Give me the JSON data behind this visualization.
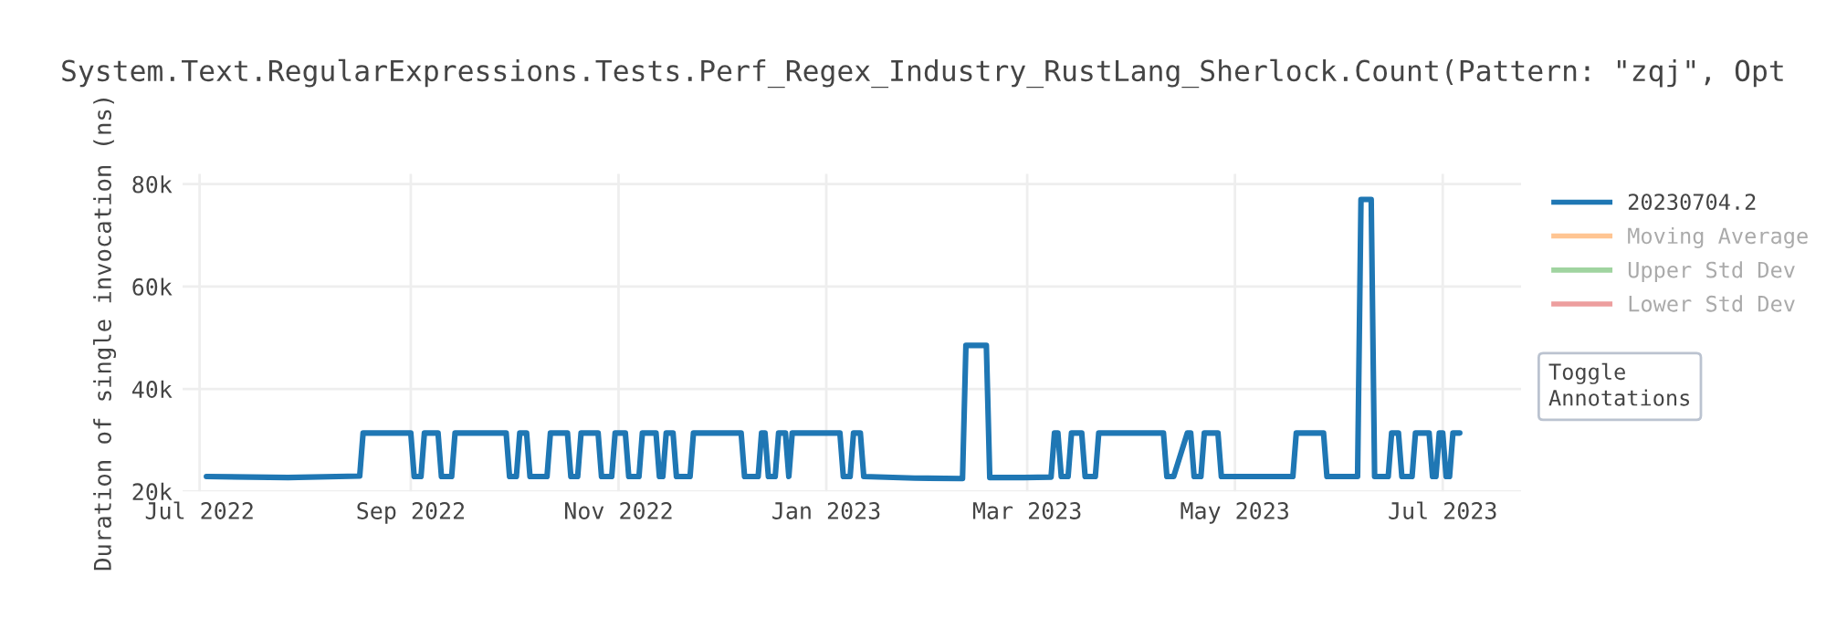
{
  "chart_data": {
    "type": "line",
    "title": "System.Text.RegularExpressions.Tests.Perf_Regex_Industry_RustLang_Sherlock.Count(Pattern: \"zqj\", Opt",
    "ylabel": "Duration of single invocation (ns)",
    "x": [
      "2022-07-03",
      "2022-07-27",
      "2022-08-17",
      "2022-08-18",
      "2022-09-01",
      "2022-09-02",
      "2022-09-04",
      "2022-09-05",
      "2022-09-09",
      "2022-09-10",
      "2022-09-13",
      "2022-09-14",
      "2022-09-29",
      "2022-09-30",
      "2022-10-02",
      "2022-10-03",
      "2022-10-05",
      "2022-10-06",
      "2022-10-11",
      "2022-10-12",
      "2022-10-17",
      "2022-10-18",
      "2022-10-20",
      "2022-10-21",
      "2022-10-26",
      "2022-10-27",
      "2022-10-30",
      "2022-10-31",
      "2022-11-03",
      "2022-11-04",
      "2022-11-07",
      "2022-11-08",
      "2022-11-12",
      "2022-11-13",
      "2022-11-14",
      "2022-11-15",
      "2022-11-17",
      "2022-11-18",
      "2022-11-22",
      "2022-11-23",
      "2022-12-07",
      "2022-12-08",
      "2022-12-12",
      "2022-12-13",
      "2022-12-14",
      "2022-12-15",
      "2022-12-17",
      "2022-12-18",
      "2022-12-20",
      "2022-12-21",
      "2022-12-22",
      "2023-01-05",
      "2023-01-06",
      "2023-01-08",
      "2023-01-09",
      "2023-01-11",
      "2023-01-12",
      "2023-01-27",
      "2023-02-10",
      "2023-02-11",
      "2023-02-17",
      "2023-02-18",
      "2023-02-28",
      "2023-03-08",
      "2023-03-09",
      "2023-03-10",
      "2023-03-11",
      "2023-03-13",
      "2023-03-14",
      "2023-03-17",
      "2023-03-18",
      "2023-03-21",
      "2023-03-22",
      "2023-04-10",
      "2023-04-11",
      "2023-04-13",
      "2023-04-17",
      "2023-04-18",
      "2023-04-19",
      "2023-04-21",
      "2023-04-22",
      "2023-04-26",
      "2023-04-27",
      "2023-05-18",
      "2023-05-19",
      "2023-05-27",
      "2023-05-28",
      "2023-06-06",
      "2023-06-07",
      "2023-06-10",
      "2023-06-11",
      "2023-06-15",
      "2023-06-16",
      "2023-06-18",
      "2023-06-19",
      "2023-06-22",
      "2023-06-23",
      "2023-06-27",
      "2023-06-28",
      "2023-06-29",
      "2023-06-30",
      "2023-07-01",
      "2023-07-02",
      "2023-07-03",
      "2023-07-04",
      "2023-07-06"
    ],
    "series": [
      {
        "name": "20230704.2",
        "color": "#1f77b4",
        "values": [
          22900,
          22700,
          23000,
          31400,
          31400,
          22900,
          22900,
          31400,
          31400,
          22900,
          22900,
          31400,
          31400,
          22900,
          22900,
          31400,
          31400,
          22900,
          22900,
          31400,
          31400,
          22900,
          22900,
          31400,
          31400,
          22900,
          22900,
          31400,
          31400,
          22900,
          22900,
          31400,
          31400,
          22900,
          22900,
          31400,
          31400,
          22900,
          22900,
          31400,
          31400,
          22900,
          22900,
          31400,
          31400,
          22900,
          22900,
          31400,
          31400,
          22900,
          31400,
          31400,
          22900,
          22900,
          31400,
          31400,
          22900,
          22600,
          22500,
          48500,
          48500,
          22700,
          22700,
          22800,
          31400,
          31400,
          22900,
          22900,
          31400,
          31400,
          22900,
          22900,
          31400,
          31400,
          22900,
          22900,
          31400,
          31400,
          22900,
          22900,
          31400,
          31400,
          22900,
          22900,
          31400,
          31400,
          22900,
          22900,
          77000,
          77000,
          22900,
          22900,
          31400,
          31400,
          22900,
          22900,
          31400,
          31400,
          22900,
          22900,
          31400,
          31400,
          22900,
          22900,
          31400,
          31400
        ]
      },
      {
        "name": "Moving Average",
        "color": "#ff7f0e",
        "values": [
          null,
          null,
          null,
          null,
          null,
          null,
          null,
          null,
          null,
          null,
          null,
          null,
          null,
          null,
          null,
          null,
          null,
          null,
          null,
          null,
          null,
          null,
          null,
          null,
          null,
          null,
          null,
          null,
          null,
          null,
          null,
          null,
          null,
          null,
          null,
          null,
          null,
          null,
          null,
          null,
          null,
          null,
          null,
          null,
          null,
          null,
          null,
          null,
          null,
          null,
          null,
          null,
          null,
          null,
          null,
          null,
          null,
          null,
          null,
          null,
          null,
          null,
          null,
          null,
          null,
          null,
          null,
          null,
          null,
          null,
          null,
          null,
          null,
          null,
          null,
          null,
          null,
          null,
          null,
          null,
          null,
          null,
          null,
          null,
          null,
          null,
          null,
          null,
          null,
          null,
          null,
          null,
          null,
          null,
          null,
          null,
          null,
          null,
          null,
          null,
          null,
          null,
          null,
          null,
          null,
          null
        ]
      },
      {
        "name": "Upper Std Dev",
        "color": "#2ca02c",
        "values": [
          null,
          null,
          null,
          null,
          null,
          null,
          null,
          null,
          null,
          null,
          null,
          null,
          null,
          null,
          null,
          null,
          null,
          null,
          null,
          null,
          null,
          null,
          null,
          null,
          null,
          null,
          null,
          null,
          null,
          null,
          null,
          null,
          null,
          null,
          null,
          null,
          null,
          null,
          null,
          null,
          null,
          null,
          null,
          null,
          null,
          null,
          null,
          null,
          null,
          null,
          null,
          null,
          null,
          null,
          null,
          null,
          null,
          null,
          null,
          null,
          null,
          null,
          null,
          null,
          null,
          null,
          null,
          null,
          null,
          null,
          null,
          null,
          null,
          null,
          null,
          null,
          null,
          null,
          null,
          null,
          null,
          null,
          null,
          null,
          null,
          null,
          null,
          null,
          null,
          null,
          null,
          null,
          null,
          null,
          null,
          null,
          null,
          null,
          null,
          null,
          null,
          null,
          null,
          null,
          null,
          null
        ]
      },
      {
        "name": "Lower Std Dev",
        "color": "#d62728",
        "values": [
          null,
          null,
          null,
          null,
          null,
          null,
          null,
          null,
          null,
          null,
          null,
          null,
          null,
          null,
          null,
          null,
          null,
          null,
          null,
          null,
          null,
          null,
          null,
          null,
          null,
          null,
          null,
          null,
          null,
          null,
          null,
          null,
          null,
          null,
          null,
          null,
          null,
          null,
          null,
          null,
          null,
          null,
          null,
          null,
          null,
          null,
          null,
          null,
          null,
          null,
          null,
          null,
          null,
          null,
          null,
          null,
          null,
          null,
          null,
          null,
          null,
          null,
          null,
          null,
          null,
          null,
          null,
          null,
          null,
          null,
          null,
          null,
          null,
          null,
          null,
          null,
          null,
          null,
          null,
          null,
          null,
          null,
          null,
          null,
          null,
          null,
          null,
          null,
          null,
          null,
          null,
          null,
          null,
          null,
          null,
          null,
          null,
          null,
          null,
          null,
          null,
          null,
          null,
          null,
          null,
          null
        ]
      }
    ],
    "xlim": [
      "2022-06-26",
      "2023-07-24"
    ],
    "xticks": [
      {
        "value": "2022-07-01",
        "label": "Jul 2022"
      },
      {
        "value": "2022-09-01",
        "label": "Sep 2022"
      },
      {
        "value": "2022-11-01",
        "label": "Nov 2022"
      },
      {
        "value": "2023-01-01",
        "label": "Jan 2023"
      },
      {
        "value": "2023-03-01",
        "label": "Mar 2023"
      },
      {
        "value": "2023-05-01",
        "label": "May 2023"
      },
      {
        "value": "2023-07-01",
        "label": "Jul 2023"
      }
    ],
    "ylim": [
      20000,
      82000
    ],
    "yticks": [
      {
        "value": 20000,
        "label": "20k"
      },
      {
        "value": 40000,
        "label": "40k"
      },
      {
        "value": 60000,
        "label": "60k"
      },
      {
        "value": 80000,
        "label": "80k"
      }
    ],
    "grid": true,
    "legend": "right",
    "annotations": [
      "Toggle\nAnnotations"
    ]
  }
}
